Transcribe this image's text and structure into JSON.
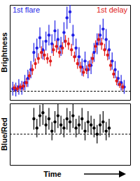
{
  "chart_data": [
    {
      "type": "scatter",
      "y_label": "Brightness",
      "xlim": [
        0,
        40
      ],
      "ylim": [
        -1,
        10
      ],
      "tick_labels": false,
      "legend": "top",
      "baseline": 0,
      "series": [
        {
          "name": "1st flare",
          "color": "#1f1fe6",
          "marker": "circle",
          "x": [
            1,
            2,
            3,
            4,
            5,
            6,
            7,
            8,
            9,
            10,
            11,
            12,
            13,
            14,
            15,
            16,
            17,
            18,
            19,
            20,
            21,
            22,
            23,
            24,
            25,
            26,
            27,
            28,
            29,
            30,
            31,
            32,
            33,
            34,
            35,
            36,
            37,
            38
          ],
          "values": [
            0.3,
            0.2,
            0.5,
            0.4,
            1.0,
            1.5,
            2.5,
            4.5,
            5.0,
            6.2,
            4.8,
            5.8,
            6.5,
            5.5,
            7.0,
            6.0,
            5.2,
            6.8,
            8.5,
            9.2,
            6.5,
            5.0,
            4.0,
            2.8,
            3.5,
            2.5,
            3.0,
            4.5,
            5.5,
            6.5,
            7.2,
            6.0,
            4.8,
            3.5,
            2.5,
            1.5,
            1.0,
            0.5
          ],
          "errors": [
            0.8,
            0.8,
            0.9,
            0.8,
            0.9,
            1.0,
            1.0,
            1.1,
            1.1,
            1.2,
            1.1,
            1.1,
            1.2,
            1.1,
            1.2,
            1.2,
            1.1,
            1.2,
            1.3,
            1.3,
            1.2,
            1.1,
            1.1,
            1.0,
            1.1,
            1.0,
            1.0,
            1.1,
            1.2,
            1.2,
            1.2,
            1.2,
            1.1,
            1.0,
            1.0,
            0.9,
            0.9,
            0.8
          ]
        },
        {
          "name": "1st delay",
          "color": "#e01a1a",
          "marker": "circle",
          "x": [
            1.5,
            2.5,
            3.5,
            4.5,
            5.5,
            6.5,
            7.5,
            8.5,
            9.5,
            10.5,
            11.5,
            12.5,
            13.5,
            14.5,
            15.5,
            16.5,
            17.5,
            18.5,
            19.5,
            20.5,
            21.5,
            22.5,
            23.5,
            24.5,
            25.5,
            26.5,
            27.5,
            28.5,
            29.5,
            30.5,
            31.5,
            32.5,
            33.5,
            34.5,
            35.5,
            36.5,
            37.5
          ],
          "values": [
            0.4,
            0.3,
            0.5,
            0.6,
            1.0,
            1.8,
            2.5,
            3.2,
            3.8,
            4.5,
            4.2,
            3.8,
            3.5,
            4.8,
            5.2,
            4.5,
            5.0,
            5.8,
            5.5,
            4.8,
            4.0,
            3.2,
            2.8,
            2.2,
            2.5,
            3.0,
            3.8,
            5.2,
            6.0,
            5.5,
            4.8,
            4.2,
            3.0,
            2.0,
            1.2,
            0.8,
            0.5
          ],
          "errors": [
            0.4,
            0.4,
            0.4,
            0.5,
            0.5,
            0.5,
            0.6,
            0.6,
            0.6,
            0.7,
            0.6,
            0.6,
            0.6,
            0.7,
            0.7,
            0.6,
            0.7,
            0.7,
            0.7,
            0.7,
            0.6,
            0.6,
            0.6,
            0.5,
            0.5,
            0.6,
            0.6,
            0.7,
            0.7,
            0.7,
            0.7,
            0.6,
            0.6,
            0.5,
            0.5,
            0.4,
            0.4
          ]
        }
      ]
    },
    {
      "type": "scatter",
      "y_label": "Blue/Red",
      "x_label": "Time",
      "xlim": [
        0,
        40
      ],
      "ylim": [
        0,
        2
      ],
      "tick_labels": false,
      "baseline": 1,
      "series": [
        {
          "color": "#000000",
          "marker": "circle",
          "x": [
            8,
            9,
            10,
            11,
            12,
            13,
            14,
            15,
            16,
            17,
            18,
            19,
            20,
            21,
            22,
            23,
            24,
            25,
            26,
            27,
            28,
            29,
            30,
            31,
            32,
            33
          ],
          "values": [
            1.5,
            1.2,
            1.6,
            1.7,
            1.3,
            1.5,
            1.1,
            1.4,
            1.6,
            1.3,
            1.2,
            1.5,
            1.4,
            1.6,
            1.2,
            1.3,
            1.5,
            1.1,
            1.4,
            1.3,
            1.2,
            1.0,
            1.3,
            1.4,
            1.1,
            1.2
          ],
          "errors": [
            0.35,
            0.3,
            0.35,
            0.4,
            0.3,
            0.35,
            0.3,
            0.35,
            0.4,
            0.3,
            0.3,
            0.35,
            0.35,
            0.4,
            0.3,
            0.3,
            0.35,
            0.3,
            0.35,
            0.3,
            0.3,
            0.3,
            0.35,
            0.35,
            0.3,
            0.3
          ]
        }
      ]
    }
  ]
}
